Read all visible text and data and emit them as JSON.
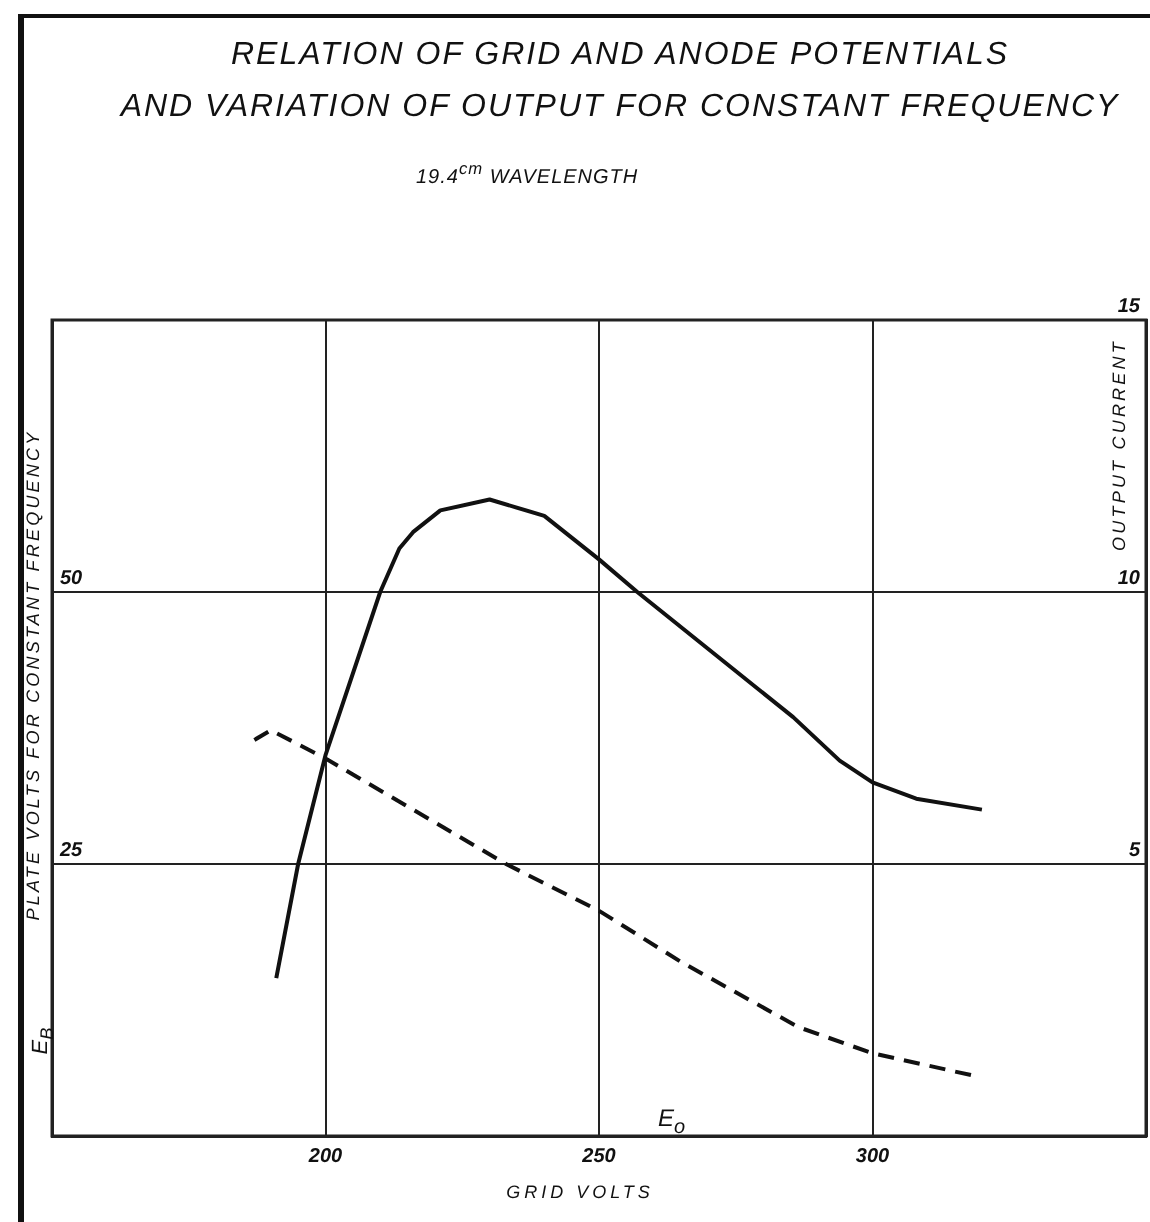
{
  "chart_data": {
    "type": "line",
    "title": "RELATION OF GRID AND ANODE POTENTIALS\nAND VARIATION OF OUTPUT FOR CONSTANT FREQUENCY",
    "subtitle": "19.4$^{cm}$ WAVELENGTH",
    "xlabel": "GRID VOLTS",
    "ylabel": "PLATE VOLTS FOR CONSTANT FREQUENCY",
    "y2label": "OUTPUT CURRENT",
    "annotations": [
      "E$_{B}$",
      "E$_{o}$"
    ],
    "series": [
      {
        "color": "#111111",
        "line_style": "dashed",
        "x": [
          187,
          190,
          200,
          233,
          250,
          265,
          286.5,
          300,
          318
        ],
        "values": [
          36.4,
          37.3,
          34.7,
          25,
          20.7,
          16,
          10,
          7.6,
          5.6
        ]
      },
      {
        "color": "#111111",
        "line_style": "solid",
        "axis": "y2",
        "x": [
          191,
          195,
          200,
          210,
          213.5,
          216,
          221,
          230,
          240,
          250,
          257,
          285.5,
          294,
          300,
          308,
          320
        ],
        "values": [
          2.9,
          5.0,
          7.0,
          10.0,
          10.8,
          11.1,
          11.5,
          11.7,
          11.4,
          10.6,
          10.0,
          7.7,
          6.9,
          6.5,
          6.2,
          6.0
        ]
      }
    ],
    "xlim": [
      150,
      350
    ],
    "xticks": [
      200,
      250,
      300
    ],
    "ylim": [
      0,
      75
    ],
    "yticks": [
      25,
      50
    ],
    "y2lim": [
      0,
      15
    ],
    "y2ticks": [
      5,
      10,
      15
    ],
    "grid": true
  }
}
